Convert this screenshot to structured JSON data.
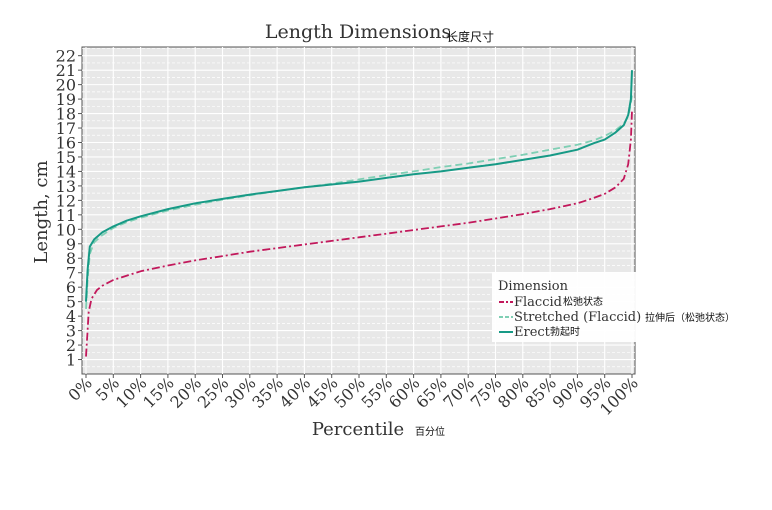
{
  "chart_data": {
    "type": "line",
    "title": "Length Dimensions",
    "title_annotation": "长度尺寸",
    "xlabel": "Percentile",
    "xlabel_annotation": "百分位",
    "ylabel": "Length, cm",
    "xlim": [
      0,
      100
    ],
    "ylim": [
      1,
      22
    ],
    "x_ticks": [
      "0%",
      "5%",
      "10%",
      "15%",
      "20%",
      "25%",
      "30%",
      "35%",
      "40%",
      "45%",
      "50%",
      "55%",
      "60%",
      "65%",
      "70%",
      "75%",
      "80%",
      "85%",
      "90%",
      "95%",
      "100%"
    ],
    "y_ticks": [
      "1",
      "2",
      "3",
      "4",
      "5",
      "6",
      "7",
      "8",
      "9",
      "10",
      "11",
      "12",
      "13",
      "14",
      "15",
      "16",
      "17",
      "18",
      "19",
      "20",
      "21",
      "22"
    ],
    "grid": true,
    "legend": {
      "title": "Dimension",
      "placement": "bottom-right",
      "entries": [
        {
          "label": "Flaccid",
          "annotation": "松弛状态"
        },
        {
          "label": "Stretched (Flaccid)",
          "annotation": "拉伸后（松弛状态）"
        },
        {
          "label": "Erect",
          "annotation": "勃起时"
        }
      ]
    },
    "series": [
      {
        "name": "Flaccid",
        "color": "#c2185b",
        "style": "dashdot",
        "x": [
          0,
          0.5,
          1,
          2,
          3,
          5,
          7.5,
          10,
          15,
          20,
          25,
          30,
          35,
          40,
          45,
          50,
          55,
          60,
          65,
          70,
          75,
          80,
          85,
          90,
          92.5,
          95,
          97,
          98.5,
          99.3,
          99.8,
          100
        ],
        "y": [
          1.2,
          4.3,
          5.2,
          5.8,
          6.1,
          6.5,
          6.8,
          7.1,
          7.5,
          7.85,
          8.15,
          8.45,
          8.7,
          8.95,
          9.2,
          9.45,
          9.7,
          9.95,
          10.2,
          10.45,
          10.75,
          11.05,
          11.4,
          11.8,
          12.1,
          12.45,
          12.9,
          13.5,
          14.5,
          16.2,
          18.2
        ]
      },
      {
        "name": "Stretched (Flaccid)",
        "color": "#7fcfb4",
        "style": "dashed",
        "x": [
          0,
          0.3,
          0.7,
          1.5,
          3,
          5,
          7.5,
          10,
          15,
          20,
          25,
          30,
          35,
          40,
          45,
          50,
          55,
          60,
          65,
          70,
          75,
          80,
          85,
          90,
          93,
          95,
          97,
          98.5,
          99.3,
          99.8,
          100
        ],
        "y": [
          4.5,
          6.5,
          8.3,
          9.1,
          9.6,
          10.1,
          10.5,
          10.8,
          11.3,
          11.7,
          12.05,
          12.35,
          12.65,
          12.9,
          13.15,
          13.45,
          13.75,
          14.0,
          14.3,
          14.55,
          14.85,
          15.15,
          15.5,
          15.85,
          16.15,
          16.45,
          16.85,
          17.3,
          17.8,
          18.7,
          19.3
        ]
      },
      {
        "name": "Erect",
        "color": "#179a86",
        "style": "solid",
        "x": [
          0,
          0.3,
          0.7,
          1.5,
          3,
          5,
          7.5,
          10,
          15,
          20,
          25,
          30,
          35,
          40,
          45,
          50,
          55,
          60,
          65,
          70,
          75,
          80,
          85,
          90,
          93,
          95,
          97,
          98.5,
          99.3,
          99.8,
          100
        ],
        "y": [
          5.0,
          7.2,
          8.8,
          9.3,
          9.8,
          10.2,
          10.6,
          10.9,
          11.4,
          11.8,
          12.1,
          12.4,
          12.65,
          12.9,
          13.1,
          13.3,
          13.55,
          13.8,
          14.0,
          14.25,
          14.5,
          14.8,
          15.1,
          15.5,
          15.95,
          16.2,
          16.7,
          17.2,
          17.9,
          19.0,
          21.0
        ]
      }
    ]
  }
}
